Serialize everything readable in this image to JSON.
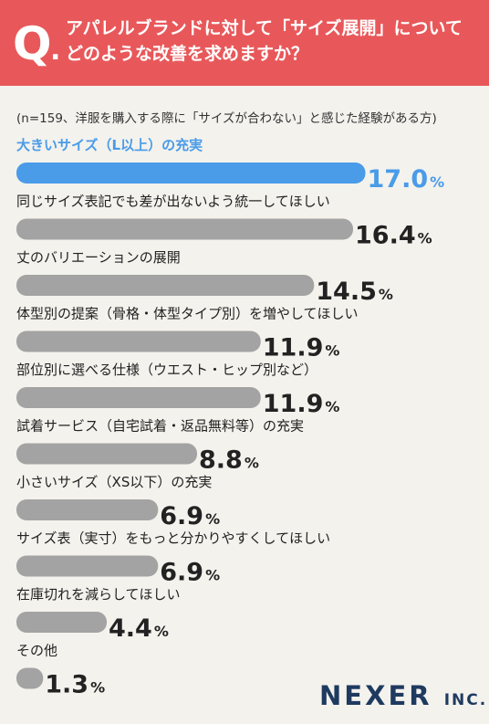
{
  "header": {
    "q_letter": "Q",
    "q_dot": ".",
    "question_line1": "アパレルブランドに対して「サイズ展開」について",
    "question_line2": "どのような改善を求めますか？"
  },
  "note": "(n=159、洋服を購入する際に「サイズが合わない」と感じた経験がある方)",
  "logo": {
    "main": "NEXER",
    "sub": "INC."
  },
  "colors": {
    "highlight": "#4a9be8",
    "bar": "#a3a3a3",
    "header_bg": "#e8585a",
    "background": "#f3f2ed",
    "logo": "#1f3a5f"
  },
  "chart_data": {
    "type": "bar",
    "orientation": "horizontal",
    "unit": "%",
    "categories": [
      "大きいサイズ（L以上）の充実",
      "同じサイズ表記でも差が出ないよう統一してほしい",
      "丈のバリエーションの展開",
      "体型別の提案（骨格・体型タイプ別）を増やしてほしい",
      "部位別に選べる仕様（ウエスト・ヒップ別など）",
      "試着サービス（自宅試着・返品無料等）の充実",
      "小さいサイズ（XS以下）の充実",
      "サイズ表（実寸）をもっと分かりやすくしてほしい",
      "在庫切れを減らしてほしい",
      "その他"
    ],
    "values": [
      17.0,
      16.4,
      14.5,
      11.9,
      11.9,
      8.8,
      6.9,
      6.9,
      4.4,
      1.3
    ],
    "value_labels": [
      "17.0",
      "16.4",
      "14.5",
      "11.9",
      "11.9",
      "8.8",
      "6.9",
      "6.9",
      "4.4",
      "1.3"
    ],
    "highlight_index": 0
  }
}
